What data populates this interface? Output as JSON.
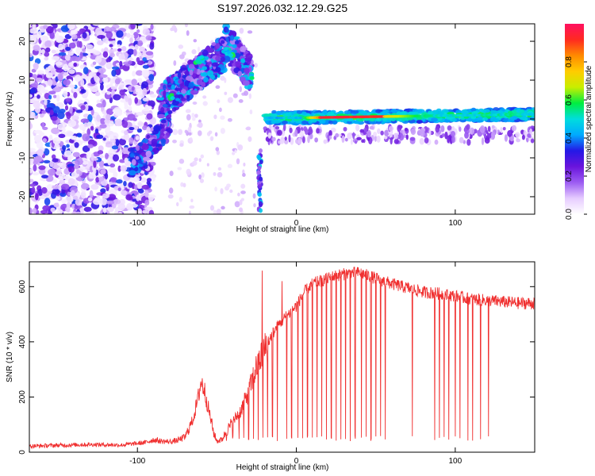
{
  "figure_title": "S197.2026.032.12.29.G25",
  "chart_data": [
    {
      "type": "heatmap",
      "xlabel": "Height of straight line (km)",
      "ylabel": "Frequency (Hz)",
      "xlim": [
        -168,
        150
      ],
      "ylim": [
        -24.5,
        24.5
      ],
      "xticks": [
        -100,
        0,
        100
      ],
      "yticks": [
        -20,
        -10,
        0,
        10,
        20
      ],
      "colorbar": {
        "label": "Normalized spectral amplitude",
        "range": [
          0.0,
          1.0
        ],
        "ticks": [
          "0.0",
          "0.2",
          "0.4",
          "0.6",
          "0.8"
        ],
        "colormap": [
          "#ffffff",
          "#e6ccff",
          "#9c5cf2",
          "#6a14dc",
          "#2418e6",
          "#00aaff",
          "#00dddd",
          "#00ee40",
          "#c8ee00",
          "#ffcc00",
          "#ff8a00",
          "#ff2a20",
          "#ff1060"
        ]
      },
      "features": [
        {
          "region": "noise",
          "x": [
            -168,
            -92
          ],
          "f": [
            -24,
            24
          ],
          "amplitude": 0.15
        },
        {
          "region": "ridge",
          "x": [
            -100,
            -80
          ],
          "f": [
            -10,
            -3
          ],
          "amplitude": 0.3
        },
        {
          "region": "ridge",
          "x": [
            -85,
            -30
          ],
          "f": [
            4,
            24
          ],
          "amplitude": 0.35
        },
        {
          "region": "peak",
          "x": [
            -66,
            -58
          ],
          "f": [
            13,
            16
          ],
          "amplitude": 0.55
        },
        {
          "region": "peak",
          "x": [
            -46,
            -38
          ],
          "f": [
            16,
            19
          ],
          "amplitude": 0.55
        },
        {
          "region": "peak",
          "x": [
            -30,
            -27
          ],
          "f": [
            10,
            12
          ],
          "amplitude": 0.5
        },
        {
          "region": "band",
          "x": [
            -20,
            150
          ],
          "f": [
            -1,
            2
          ],
          "amplitude": 0.5
        },
        {
          "region": "core",
          "x": [
            10,
            55
          ],
          "f": [
            -0.5,
            0.5
          ],
          "amplitude": 0.95
        }
      ]
    },
    {
      "type": "line",
      "xlabel": "Height of straight line (km)",
      "ylabel": "SNR (10 * v/v)",
      "xlim": [
        -168,
        150
      ],
      "ylim": [
        0,
        690
      ],
      "xticks": [
        -100,
        0,
        100
      ],
      "yticks": [
        0,
        200,
        400,
        600
      ],
      "color": "#f03030",
      "series": [
        {
          "x": [
            -168,
            -150,
            -130,
            -110,
            -95,
            -90,
            -85,
            -80,
            -75,
            -70,
            -65,
            -62,
            -60,
            -58,
            -55,
            -52,
            -50,
            -47,
            -45,
            -40,
            -35,
            -30,
            -25,
            -20,
            -15,
            -10,
            -5,
            0,
            5,
            10,
            15,
            20,
            25,
            30,
            35,
            40,
            45,
            50,
            55,
            60,
            70,
            80,
            90,
            100,
            110,
            120,
            130,
            140,
            150
          ],
          "y": [
            22,
            25,
            28,
            26,
            35,
            45,
            40,
            38,
            42,
            55,
            120,
            190,
            255,
            230,
            150,
            70,
            40,
            45,
            65,
            110,
            150,
            220,
            310,
            370,
            430,
            470,
            500,
            530,
            580,
            610,
            620,
            630,
            640,
            645,
            650,
            650,
            640,
            630,
            620,
            610,
            595,
            580,
            575,
            565,
            555,
            550,
            545,
            540,
            540
          ]
        }
      ],
      "dropouts": {
        "min_snr": 40,
        "x": [
          -44,
          -40,
          -36,
          -33,
          -30,
          -27,
          -24,
          -21,
          -18,
          -15,
          -12,
          -9,
          -6,
          -3,
          1,
          4,
          7,
          10,
          13,
          16,
          19,
          22,
          25,
          28,
          31,
          34,
          37,
          41,
          44,
          47,
          50,
          53,
          56,
          73,
          87,
          90,
          93,
          96,
          100,
          103,
          108,
          111,
          116,
          121
        ]
      },
      "spikes": [
        {
          "x": -21.5,
          "y": 658
        },
        {
          "x": -20.5,
          "y": 410
        },
        {
          "x": -9,
          "y": 620
        }
      ]
    }
  ]
}
